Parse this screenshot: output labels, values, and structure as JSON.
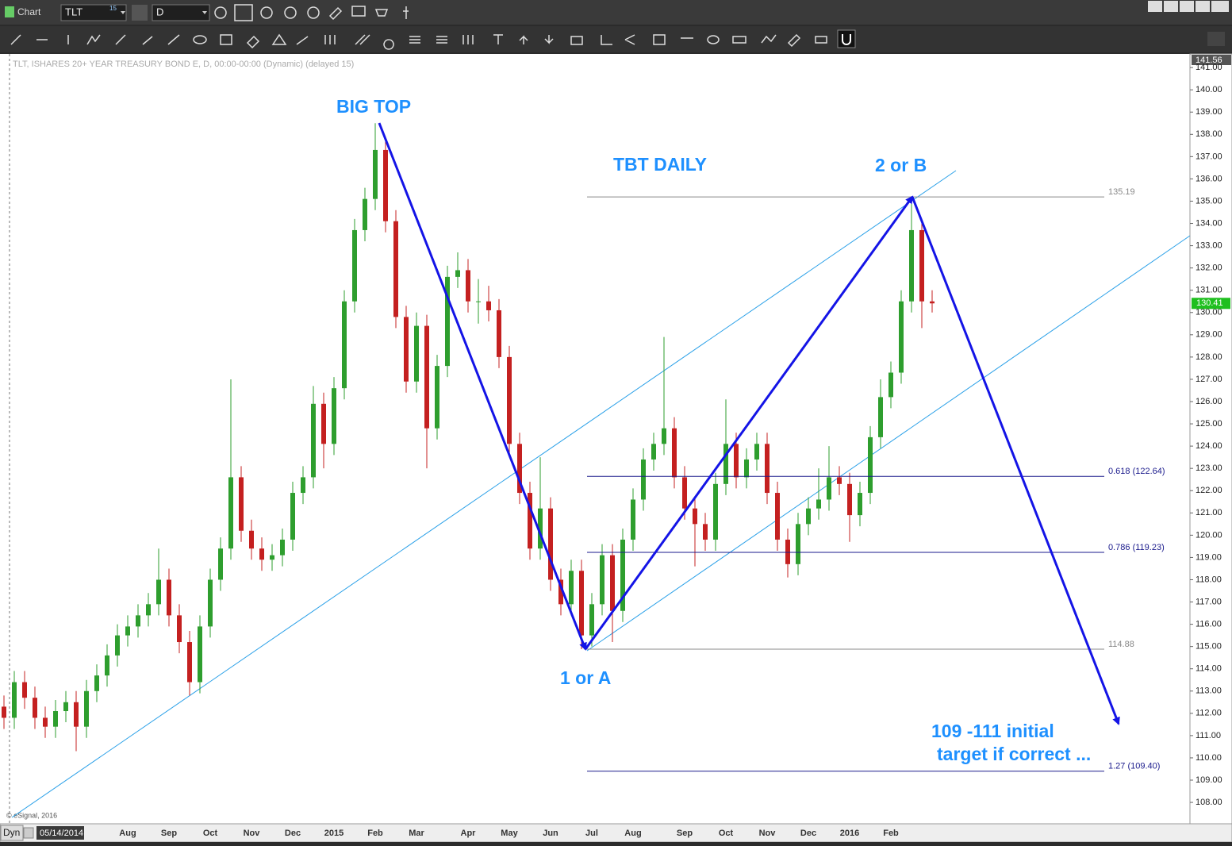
{
  "ui": {
    "window_title": "Chart",
    "symbol": "TLT",
    "symbol_badge": "15",
    "interval": "D",
    "chart_info": "TLT, ISHARES 20+ YEAR TREASURY BOND E, D, 00:00-00:00 (Dynamic) (delayed 15)",
    "copyright": "© eSignal, 2016",
    "mode": "Dyn",
    "cursor_date": "05/14/2014"
  },
  "chart_data": {
    "type": "candlestick",
    "up_color": "#2e9e2e",
    "down_color": "#c42020",
    "ylim": [
      107.04,
      141.61
    ],
    "yticks": [
      {
        "value": 108,
        "label": "108.00"
      },
      {
        "value": 109,
        "label": "109.00"
      },
      {
        "value": 110,
        "label": "110.00"
      },
      {
        "value": 111,
        "label": "111.00"
      },
      {
        "value": 112,
        "label": "112.00"
      },
      {
        "value": 113,
        "label": "113.00"
      },
      {
        "value": 114,
        "label": "114.00"
      },
      {
        "value": 115,
        "label": "115.00"
      },
      {
        "value": 116,
        "label": "116.00"
      },
      {
        "value": 117,
        "label": "117.00"
      },
      {
        "value": 118,
        "label": "118.00"
      },
      {
        "value": 119,
        "label": "119.00"
      },
      {
        "value": 120,
        "label": "120.00"
      },
      {
        "value": 121,
        "label": "121.00"
      },
      {
        "value": 122,
        "label": "122.00"
      },
      {
        "value": 123,
        "label": "123.00"
      },
      {
        "value": 124,
        "label": "124.00"
      },
      {
        "value": 125,
        "label": "125.00"
      },
      {
        "value": 126,
        "label": "126.00"
      },
      {
        "value": 127,
        "label": "127.00"
      },
      {
        "value": 128,
        "label": "128.00"
      },
      {
        "value": 129,
        "label": "129.00"
      },
      {
        "value": 130,
        "label": "130.00"
      },
      {
        "value": 131,
        "label": "131.00"
      },
      {
        "value": 132,
        "label": "132.00"
      },
      {
        "value": 133,
        "label": "133.00"
      },
      {
        "value": 134,
        "label": "134.00"
      },
      {
        "value": 135,
        "label": "135.00"
      },
      {
        "value": 136,
        "label": "136.00"
      },
      {
        "value": 137,
        "label": "137.00"
      },
      {
        "value": 138,
        "label": "138.00"
      },
      {
        "value": 139,
        "label": "139.00"
      },
      {
        "value": 140,
        "label": "140.00"
      },
      {
        "value": 141,
        "label": "141.00"
      }
    ],
    "top_price": 141.56,
    "categories": [
      null,
      null,
      null,
      null,
      null,
      null,
      null,
      null,
      null,
      null,
      null,
      null,
      "Aug",
      null,
      null,
      null,
      "Sep",
      null,
      null,
      null,
      "Oct",
      null,
      null,
      null,
      "Nov",
      null,
      null,
      null,
      "Dec",
      null,
      null,
      null,
      "2015",
      null,
      null,
      null,
      "Feb",
      null,
      null,
      null,
      "Mar",
      null,
      null,
      null,
      null,
      "Apr",
      null,
      null,
      null,
      "May",
      null,
      null,
      null,
      "Jun",
      null,
      null,
      null,
      "Jul",
      null,
      null,
      null,
      "Aug",
      null,
      null,
      null,
      null,
      "Sep",
      null,
      null,
      null,
      "Oct",
      null,
      null,
      null,
      "Nov",
      null,
      null,
      null,
      "Dec",
      null,
      null,
      null,
      "2016",
      null,
      null,
      null,
      "Feb",
      null,
      null,
      null,
      null
    ],
    "ohlc": [
      [
        112.3,
        112.8,
        111.3,
        111.8
      ],
      [
        111.8,
        113.9,
        111.3,
        113.4
      ],
      [
        113.4,
        113.9,
        112.2,
        112.7
      ],
      [
        112.7,
        113.2,
        111.3,
        111.8
      ],
      [
        111.8,
        112.3,
        110.9,
        111.4
      ],
      [
        111.4,
        112.6,
        110.9,
        112.1
      ],
      [
        112.1,
        113.0,
        111.6,
        112.5
      ],
      [
        112.5,
        113.0,
        110.3,
        111.4
      ],
      [
        111.4,
        113.5,
        110.9,
        113.0
      ],
      [
        113.0,
        114.2,
        112.5,
        113.7
      ],
      [
        113.7,
        115.1,
        113.2,
        114.6
      ],
      [
        114.6,
        116.0,
        114.1,
        115.5
      ],
      [
        115.5,
        116.4,
        115.0,
        115.9
      ],
      [
        115.9,
        116.9,
        115.4,
        116.4
      ],
      [
        116.4,
        117.4,
        115.9,
        116.9
      ],
      [
        116.9,
        119.4,
        116.4,
        118.0
      ],
      [
        118.0,
        118.5,
        115.9,
        116.4
      ],
      [
        116.4,
        116.9,
        114.7,
        115.2
      ],
      [
        115.2,
        115.7,
        112.8,
        113.4
      ],
      [
        113.4,
        116.4,
        112.9,
        115.9
      ],
      [
        115.9,
        118.5,
        115.4,
        118.0
      ],
      [
        118.0,
        119.9,
        117.5,
        119.4
      ],
      [
        119.4,
        127.0,
        118.9,
        122.6
      ],
      [
        122.6,
        123.1,
        119.7,
        120.2
      ],
      [
        120.2,
        120.7,
        118.9,
        119.4
      ],
      [
        119.4,
        119.9,
        118.4,
        118.9
      ],
      [
        118.9,
        119.6,
        118.4,
        119.1
      ],
      [
        119.1,
        120.3,
        118.6,
        119.8
      ],
      [
        119.8,
        122.4,
        119.3,
        121.9
      ],
      [
        121.9,
        123.1,
        121.4,
        122.6
      ],
      [
        122.6,
        126.7,
        122.1,
        125.9
      ],
      [
        125.9,
        126.4,
        123.0,
        124.1
      ],
      [
        124.1,
        127.1,
        123.6,
        126.6
      ],
      [
        126.6,
        131.0,
        126.1,
        130.5
      ],
      [
        130.5,
        134.2,
        130.0,
        133.7
      ],
      [
        133.7,
        135.6,
        133.2,
        135.1
      ],
      [
        135.1,
        138.5,
        134.6,
        137.3
      ],
      [
        137.3,
        137.8,
        133.6,
        134.1
      ],
      [
        134.1,
        134.6,
        129.3,
        129.8
      ],
      [
        129.8,
        130.3,
        126.4,
        126.9
      ],
      [
        126.9,
        130.0,
        126.4,
        129.4
      ],
      [
        129.4,
        129.9,
        123.0,
        124.8
      ],
      [
        124.8,
        128.1,
        124.3,
        127.6
      ],
      [
        127.6,
        132.1,
        127.1,
        131.6
      ],
      [
        131.6,
        132.7,
        131.1,
        131.9
      ],
      [
        131.9,
        132.4,
        130.0,
        130.5
      ],
      [
        130.5,
        131.5,
        129.5,
        130.5
      ],
      [
        130.5,
        131.2,
        129.6,
        130.1
      ],
      [
        130.1,
        130.6,
        127.5,
        128.0
      ],
      [
        128.0,
        128.5,
        123.6,
        124.1
      ],
      [
        124.1,
        124.6,
        121.4,
        121.9
      ],
      [
        121.9,
        122.4,
        118.9,
        119.4
      ],
      [
        119.4,
        123.5,
        118.9,
        121.2
      ],
      [
        121.2,
        121.7,
        117.5,
        118.0
      ],
      [
        118.0,
        118.5,
        116.4,
        116.9
      ],
      [
        116.9,
        118.9,
        116.4,
        118.4
      ],
      [
        118.4,
        118.9,
        114.88,
        115.5
      ],
      [
        115.5,
        117.4,
        115.0,
        116.9
      ],
      [
        116.9,
        119.6,
        116.4,
        119.1
      ],
      [
        119.1,
        119.6,
        115.2,
        116.6
      ],
      [
        116.6,
        120.3,
        116.1,
        119.8
      ],
      [
        119.8,
        122.1,
        119.3,
        121.6
      ],
      [
        121.6,
        123.9,
        121.1,
        123.4
      ],
      [
        123.4,
        124.6,
        122.9,
        124.1
      ],
      [
        124.1,
        128.9,
        123.6,
        124.8
      ],
      [
        124.8,
        125.3,
        122.1,
        122.6
      ],
      [
        122.6,
        123.1,
        120.7,
        121.2
      ],
      [
        121.2,
        121.7,
        118.6,
        120.5
      ],
      [
        120.5,
        121.0,
        119.3,
        119.8
      ],
      [
        119.8,
        122.8,
        119.3,
        122.3
      ],
      [
        122.3,
        126.1,
        121.8,
        124.1
      ],
      [
        124.1,
        124.6,
        122.1,
        122.6
      ],
      [
        122.6,
        123.9,
        122.1,
        123.4
      ],
      [
        123.4,
        124.6,
        122.9,
        124.1
      ],
      [
        124.1,
        124.6,
        121.4,
        121.9
      ],
      [
        121.9,
        122.4,
        119.3,
        119.8
      ],
      [
        119.8,
        120.3,
        118.1,
        118.7
      ],
      [
        118.7,
        121.0,
        118.2,
        120.5
      ],
      [
        120.5,
        121.7,
        120.0,
        121.2
      ],
      [
        121.2,
        123.0,
        120.7,
        121.6
      ],
      [
        121.6,
        124.0,
        121.1,
        122.6
      ],
      [
        122.6,
        123.1,
        121.8,
        122.3
      ],
      [
        122.3,
        122.8,
        119.7,
        120.9
      ],
      [
        120.9,
        122.4,
        120.4,
        121.9
      ],
      [
        121.9,
        124.9,
        121.4,
        124.4
      ],
      [
        124.4,
        127.0,
        123.9,
        126.2
      ],
      [
        126.2,
        127.8,
        125.7,
        127.3
      ],
      [
        127.3,
        131.0,
        126.8,
        130.5
      ],
      [
        130.5,
        135.19,
        130.0,
        133.7
      ],
      [
        133.7,
        134.2,
        129.3,
        130.5
      ],
      [
        130.5,
        131.0,
        130.0,
        130.41
      ]
    ],
    "levels": [
      {
        "value": 135.19,
        "label": "135.19",
        "color": "#888888"
      },
      {
        "value": 122.64,
        "label": "0.618 (122.64)",
        "color": "#1a1a8c"
      },
      {
        "value": 119.23,
        "label": "0.786 (119.23)",
        "color": "#1a1a8c"
      },
      {
        "value": 114.88,
        "label": "114.88",
        "color": "#888888"
      },
      {
        "value": 109.4,
        "label": "1.27 (109.40)",
        "color": "#1a1a8c"
      }
    ],
    "annotations": {
      "big_top": "BIG TOP",
      "chart_name": "TBT DAILY",
      "wave_b": "2 or B",
      "wave_a": "1 or A",
      "target_1": "109 -111 initial",
      "target_2": "target if correct ..."
    }
  }
}
